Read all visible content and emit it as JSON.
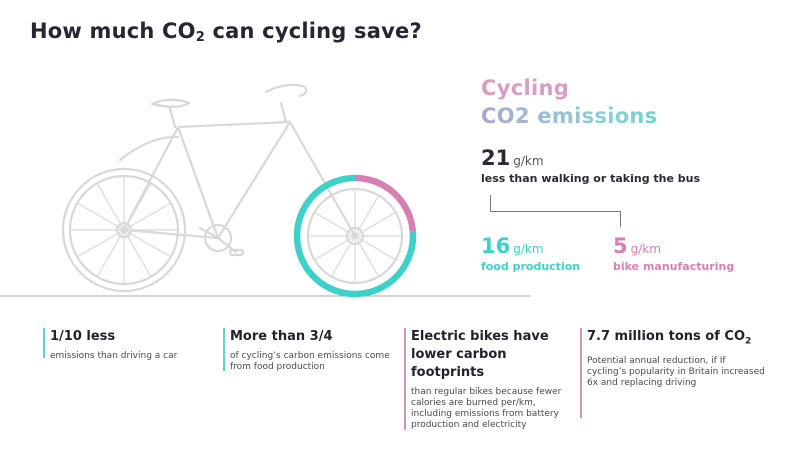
{
  "title": {
    "main": "How much CO",
    "sub": "2",
    "suffix": " can cycling save?"
  },
  "heading": {
    "line1": "Cycling",
    "line2": "CO2 emissions"
  },
  "total": {
    "value": "21",
    "unit": "g/km",
    "label": "less than walking or taking the bus"
  },
  "breakdown": [
    {
      "value": "16",
      "unit": "g/km",
      "label": "food production",
      "color": "#3fd1c9"
    },
    {
      "value": "5",
      "unit": "g/km",
      "label": "bike manufacturing",
      "color": "#d77fb2"
    }
  ],
  "facts": [
    {
      "title": "1/10 less",
      "desc": "emissions than driving a car",
      "color": "#5dd5cf"
    },
    {
      "title": "More than 3/4",
      "desc": "of cycling’s carbon emissions come from food production",
      "color": "#5dd5cf"
    },
    {
      "title": "Electric bikes have lower carbon footprints",
      "desc": "than regular bikes because fewer calories are burned per/km, including emissions from battery production and electricity",
      "color": "#d98fbe"
    },
    {
      "title_main": "7.7 million tons of CO",
      "title_sub": "2",
      "desc": "Potential annual reduction, if If cycling’s popularity in Britain increased 6x and replacing driving",
      "color": "#d98fbe"
    }
  ],
  "chart_data": {
    "type": "pie",
    "categories": [
      "food production",
      "bike manufacturing"
    ],
    "values": [
      16,
      5
    ],
    "unit": "g/km",
    "total": 21
  }
}
